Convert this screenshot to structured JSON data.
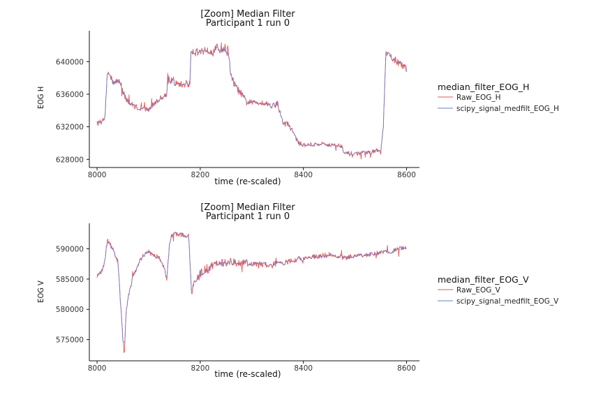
{
  "colors": {
    "raw": "#e05a57",
    "filtered": "#6a7bd0"
  },
  "chart_data": [
    {
      "type": "line",
      "title": "[Zoom] Median Filter",
      "subtitle": "Participant 1 run 0",
      "xlabel": "time (re-scaled)",
      "ylabel": "EOG H",
      "xlim": [
        7985,
        8625
      ],
      "ylim": [
        627000,
        643800
      ],
      "xticks": [
        8000,
        8200,
        8400,
        8600
      ],
      "xtick_labels": [
        "8000",
        "8200",
        "8400",
        "8600"
      ],
      "yticks": [
        628000,
        632000,
        636000,
        640000
      ],
      "ytick_labels": [
        "628000",
        "632000",
        "636000",
        "640000"
      ],
      "legend": {
        "title": "median_filter_EOG_H",
        "items": [
          "Raw_EOG_H",
          "scipy_signal_medfilt_EOG_H"
        ],
        "position": "right"
      },
      "grid": false,
      "control_points": {
        "x": [
          8000,
          8005,
          8010,
          8015,
          8020,
          8028,
          8035,
          8045,
          8055,
          8065,
          8080,
          8100,
          8120,
          8135,
          8137,
          8140,
          8150,
          8160,
          8175,
          8180,
          8182,
          8190,
          8200,
          8210,
          8230,
          8240,
          8250,
          8255,
          8260,
          8270,
          8280,
          8290,
          8300,
          8320,
          8340,
          8350,
          8355,
          8360,
          8370,
          8380,
          8390,
          8400,
          8420,
          8440,
          8460,
          8475,
          8480,
          8500,
          8520,
          8545,
          8550,
          8555,
          8560,
          8580,
          8600
        ],
        "y": [
          632500,
          632600,
          632800,
          633000,
          638800,
          637800,
          637400,
          637600,
          635500,
          634800,
          634300,
          634100,
          635400,
          636000,
          638500,
          637800,
          637400,
          637200,
          637200,
          637200,
          641500,
          641200,
          641200,
          641500,
          641500,
          641700,
          641500,
          641300,
          638000,
          636800,
          636000,
          635000,
          635000,
          635000,
          634600,
          634900,
          633500,
          632500,
          632300,
          631400,
          630000,
          629800,
          629800,
          629900,
          629700,
          629700,
          628700,
          628700,
          628800,
          629000,
          628900,
          632000,
          641000,
          640100,
          639000
        ]
      },
      "noise_amp": [
        230,
        230,
        230,
        230,
        400,
        500,
        500,
        500,
        400,
        400,
        350,
        350,
        350,
        350,
        400,
        400,
        400,
        400,
        400,
        400,
        500,
        550,
        550,
        600,
        650,
        700,
        700,
        650,
        600,
        450,
        450,
        400,
        350,
        350,
        350,
        350,
        400,
        400,
        350,
        300,
        300,
        280,
        280,
        280,
        280,
        280,
        280,
        280,
        280,
        280,
        280,
        280,
        450,
        450,
        450
      ]
    },
    {
      "type": "line",
      "title": "[Zoom] Median Filter",
      "subtitle": "Participant 1 run 0",
      "xlabel": "time (re-scaled)",
      "ylabel": "EOG V",
      "xlim": [
        7985,
        8625
      ],
      "ylim": [
        571500,
        594200
      ],
      "xticks": [
        8000,
        8200,
        8400,
        8600
      ],
      "xtick_labels": [
        "8000",
        "8200",
        "8400",
        "8600"
      ],
      "yticks": [
        575000,
        580000,
        585000,
        590000
      ],
      "ytick_labels": [
        "575000",
        "580000",
        "585000",
        "590000"
      ],
      "legend": {
        "title": "median_filter_EOG_V",
        "items": [
          "Raw_EOG_V",
          "scipy_signal_medfilt_EOG_V"
        ],
        "position": "right"
      },
      "grid": false,
      "control_points": {
        "x": [
          8000,
          8005,
          8010,
          8015,
          8020,
          8030,
          8040,
          8045,
          8050,
          8053,
          8056,
          8060,
          8070,
          8080,
          8090,
          8100,
          8120,
          8130,
          8135,
          8140,
          8145,
          8150,
          8160,
          8170,
          8178,
          8183,
          8190,
          8200,
          8220,
          8240,
          8260,
          8280,
          8300,
          8330,
          8360,
          8390,
          8420,
          8450,
          8480,
          8510,
          8540,
          8570,
          8600
        ],
        "y": [
          585500,
          586000,
          586500,
          588000,
          591500,
          590000,
          588000,
          582000,
          575000,
          573200,
          579000,
          582000,
          585500,
          587500,
          589000,
          589500,
          588500,
          587000,
          585000,
          590500,
          592000,
          592500,
          592300,
          592200,
          592000,
          582500,
          585000,
          586000,
          587000,
          587700,
          587800,
          587800,
          587500,
          587300,
          587600,
          588300,
          588700,
          589000,
          588500,
          588800,
          589300,
          589600,
          590300
        ]
      },
      "noise_amp": [
        350,
        350,
        350,
        350,
        400,
        400,
        400,
        400,
        350,
        350,
        400,
        400,
        400,
        400,
        400,
        400,
        400,
        450,
        450,
        450,
        450,
        450,
        450,
        450,
        450,
        550,
        650,
        750,
        850,
        800,
        750,
        650,
        550,
        500,
        450,
        450,
        450,
        450,
        400,
        400,
        400,
        400,
        400
      ]
    }
  ]
}
